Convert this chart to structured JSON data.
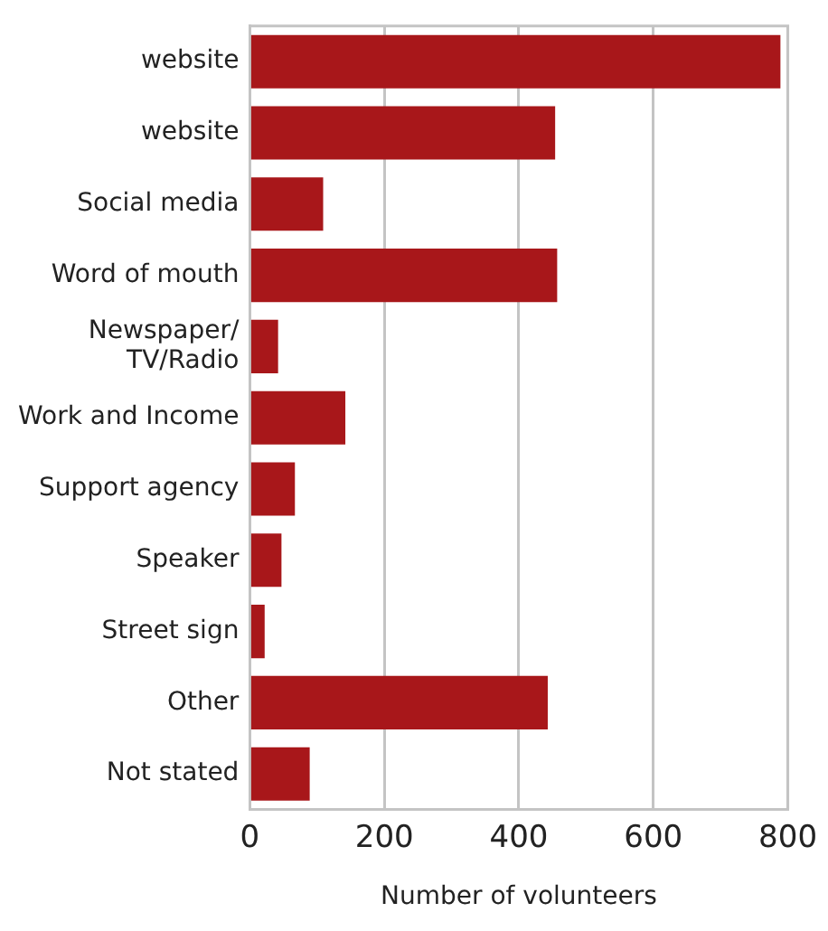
{
  "chart_data": {
    "type": "bar",
    "orientation": "horizontal",
    "xlabel": "Number of volunteers",
    "categories": [
      "website",
      "website",
      "Social media",
      "Word of mouth",
      "Newspaper/\nTV/Radio",
      "Work and Income",
      "Support agency",
      "Speaker",
      "Street sign",
      "Other",
      "Not stated"
    ],
    "values": [
      789,
      454,
      109,
      457,
      42,
      142,
      67,
      47,
      22,
      443,
      89
    ],
    "color": "#a8171a",
    "xlim": [
      0,
      800
    ],
    "xticks": [
      0,
      200,
      400,
      600,
      800
    ],
    "grid": "x",
    "legend": false
  }
}
